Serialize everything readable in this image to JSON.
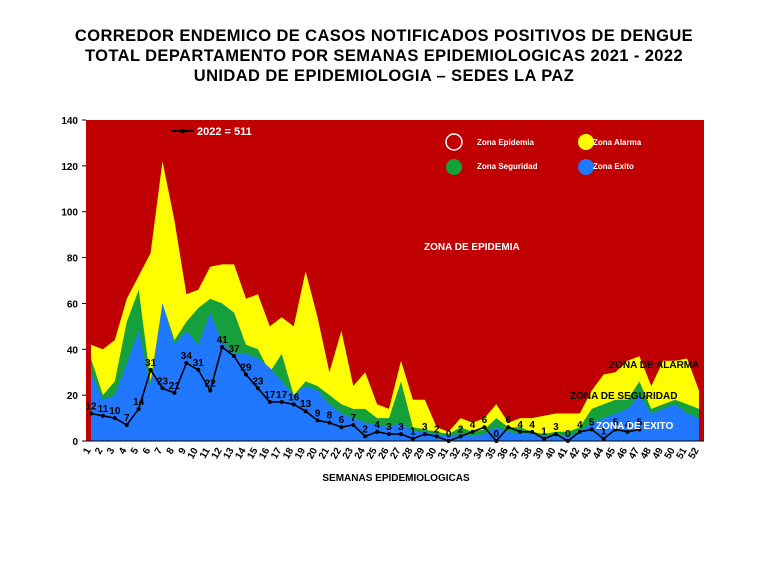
{
  "title_lines": [
    "CORREDOR ENDEMICO DE CASOS NOTIFICADOS POSITIVOS DE DENGUE",
    "TOTAL DEPARTAMENTO  POR SEMANAS EPIDEMIOLOGICAS 2021 - 2022",
    "UNIDAD DE EPIDEMIOLOGIA – SEDES LA PAZ"
  ],
  "colors": {
    "epidemia": "#c00000",
    "alarma": "#ffff00",
    "seguridad": "#16a03c",
    "exito": "#1f78ff",
    "line": "#000000"
  },
  "legend": {
    "line_label": "2022 = 511",
    "epidemia": "Zona Epidemia",
    "alarma": "Zona Alarma",
    "seguridad": "Zona Seguridad",
    "exito": "Zona Exito"
  },
  "zone_labels": {
    "epidemia": "ZONA DE EPIDEMIA",
    "alarma": "ZONA DE ALARMA",
    "seguridad": "ZONA DE  SEGURIDAD",
    "exito": "ZONA DE  EXITO"
  },
  "chart_data": {
    "type": "area",
    "title": "CORREDOR ENDEMICO DE CASOS NOTIFICADOS POSITIVOS DE DENGUE TOTAL DEPARTAMENTO POR SEMANAS EPIDEMIOLOGICAS 2021 - 2022",
    "xlabel": "SEMANAS EPIDEMIOLOGICAS",
    "ylabel": "",
    "ylim": [
      0,
      140
    ],
    "yticks": [
      0,
      20,
      40,
      60,
      80,
      100,
      120,
      140
    ],
    "categories": [
      "1",
      "2",
      "3",
      "4",
      "5",
      "6",
      "7",
      "8",
      "9",
      "10",
      "11",
      "12",
      "13",
      "14",
      "15",
      "16",
      "17",
      "18",
      "19",
      "20",
      "21",
      "22",
      "23",
      "24",
      "25",
      "26",
      "27",
      "28",
      "29",
      "30",
      "31",
      "32",
      "33",
      "34",
      "35",
      "36",
      "37",
      "38",
      "39",
      "40",
      "41",
      "42",
      "43",
      "44",
      "45",
      "46",
      "47",
      "48",
      "49",
      "50",
      "51",
      "52"
    ],
    "series": [
      {
        "name": "Zona Exito",
        "values": [
          30,
          18,
          20,
          34,
          48,
          24,
          60,
          42,
          48,
          42,
          56,
          43,
          38,
          38,
          36,
          32,
          26,
          20,
          24,
          22,
          16,
          12,
          10,
          8,
          7,
          6,
          8,
          4,
          4,
          3,
          2,
          3,
          2,
          3,
          6,
          4,
          3,
          3,
          2,
          3,
          2,
          4,
          8,
          10,
          12,
          14,
          20,
          12,
          14,
          16,
          12,
          10
        ]
      },
      {
        "name": "Zona Seguridad",
        "values": [
          36,
          20,
          26,
          52,
          66,
          26,
          60,
          44,
          52,
          58,
          62,
          60,
          56,
          42,
          40,
          30,
          38,
          20,
          26,
          24,
          20,
          16,
          14,
          14,
          10,
          10,
          26,
          6,
          5,
          4,
          3,
          6,
          4,
          5,
          10,
          6,
          6,
          4,
          3,
          4,
          4,
          6,
          14,
          16,
          18,
          18,
          26,
          14,
          16,
          18,
          16,
          14
        ]
      },
      {
        "name": "Zona Alarma",
        "values": [
          42,
          40,
          44,
          62,
          72,
          82,
          122,
          96,
          64,
          66,
          76,
          77,
          77,
          62,
          64,
          50,
          54,
          50,
          74,
          54,
          30,
          48,
          24,
          30,
          16,
          14,
          35,
          18,
          18,
          6,
          4,
          10,
          8,
          10,
          16,
          8,
          10,
          10,
          11,
          12,
          12,
          12,
          22,
          29,
          30,
          35,
          37,
          24,
          35,
          35,
          36,
          22
        ]
      },
      {
        "name": "2022 = 511",
        "values": [
          12,
          11,
          10,
          7,
          14,
          31,
          23,
          21,
          34,
          31,
          22,
          41,
          37,
          29,
          23,
          17,
          17,
          16,
          13,
          9,
          8,
          6,
          7,
          2,
          4,
          3,
          3,
          1,
          3,
          2,
          0,
          2,
          4,
          6,
          0,
          6,
          4,
          4,
          1,
          3,
          0,
          4,
          5,
          1,
          5,
          4,
          5,
          null,
          null,
          null,
          null,
          null
        ]
      }
    ]
  }
}
